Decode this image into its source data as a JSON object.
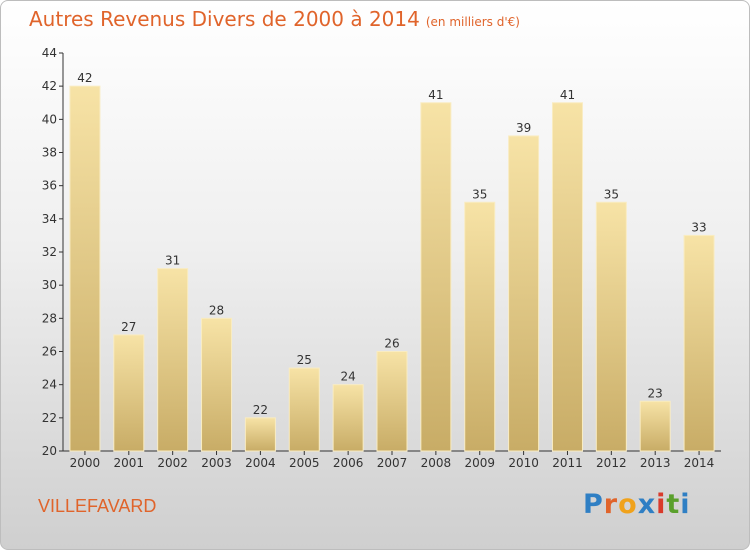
{
  "chart_data": {
    "type": "bar",
    "title": "Autres Revenus Divers de 2000 à 2014",
    "unit": "(en milliers d'€)",
    "categories": [
      "2000",
      "2001",
      "2002",
      "2003",
      "2004",
      "2005",
      "2006",
      "2007",
      "2008",
      "2009",
      "2010",
      "2011",
      "2012",
      "2013",
      "2014"
    ],
    "values": [
      42,
      27,
      31,
      28,
      22,
      25,
      24,
      26,
      41,
      35,
      39,
      41,
      35,
      23,
      33
    ],
    "ylim": [
      20,
      44
    ],
    "yticks": [
      20,
      22,
      24,
      26,
      28,
      30,
      32,
      34,
      36,
      38,
      40,
      42,
      44
    ],
    "grid": false,
    "bar_color": "#e6c77c",
    "bar_highlight": "#f7e3a6"
  },
  "place": "VILLEFAVARD",
  "logo": {
    "letters": [
      "P",
      "r",
      "o",
      "x",
      "i",
      "t",
      "i"
    ],
    "colors": [
      "#2f7fc4",
      "#e0642b",
      "#f0a21b",
      "#2f7fc4",
      "#d93a2b",
      "#5aa02c",
      "#2f7fc4"
    ]
  },
  "colors": {
    "title": "#e0642b",
    "axis": "#333333"
  }
}
